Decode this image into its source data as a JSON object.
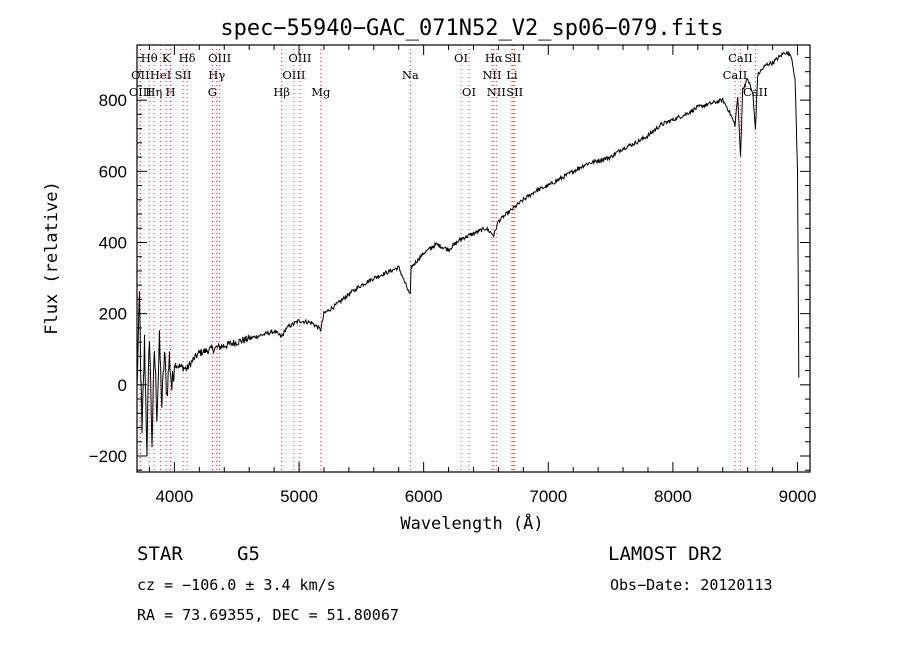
{
  "chart_data": {
    "type": "line",
    "title": "spec−55940−GAC_071N52_V2_sp06−079.fits",
    "xlabel": "Wavelength (Å)",
    "ylabel": "Flux (relative)",
    "xlim": [
      3700,
      9100
    ],
    "ylim": [
      -245,
      955
    ],
    "xticks": [
      4000,
      5000,
      6000,
      7000,
      8000,
      9000
    ],
    "yticks": [
      -200,
      0,
      200,
      400,
      600,
      800
    ],
    "series": [
      {
        "name": "flux",
        "x": [
          3700,
          3720,
          3740,
          3760,
          3780,
          3800,
          3820,
          3840,
          3860,
          3880,
          3900,
          3920,
          3940,
          3960,
          3980,
          4000,
          4050,
          4100,
          4150,
          4200,
          4300,
          4400,
          4500,
          4600,
          4700,
          4800,
          4861,
          4900,
          5000,
          5100,
          5175,
          5200,
          5300,
          5400,
          5500,
          5600,
          5700,
          5800,
          5893,
          5900,
          6000,
          6100,
          6200,
          6300,
          6400,
          6500,
          6563,
          6600,
          6700,
          6800,
          6900,
          7000,
          7100,
          7200,
          7300,
          7400,
          7500,
          7600,
          7700,
          7800,
          7900,
          8000,
          8100,
          8200,
          8300,
          8400,
          8450,
          8498,
          8520,
          8542,
          8560,
          8600,
          8640,
          8662,
          8680,
          8700,
          8750,
          8800,
          8850,
          8900,
          8950,
          8980,
          9000,
          9010
        ],
        "y": [
          -10,
          250,
          -150,
          120,
          -180,
          150,
          -160,
          100,
          -80,
          120,
          -60,
          90,
          -30,
          80,
          -10,
          60,
          50,
          45,
          70,
          90,
          100,
          110,
          120,
          130,
          140,
          150,
          135,
          160,
          180,
          175,
          155,
          200,
          225,
          255,
          280,
          300,
          315,
          330,
          250,
          330,
          370,
          395,
          380,
          410,
          425,
          440,
          420,
          460,
          490,
          520,
          545,
          560,
          580,
          600,
          620,
          630,
          640,
          665,
          680,
          700,
          730,
          745,
          760,
          780,
          790,
          800,
          770,
          730,
          810,
          640,
          830,
          860,
          820,
          720,
          870,
          880,
          900,
          905,
          920,
          935,
          925,
          860,
          600,
          20
        ]
      }
    ],
    "lines": [
      {
        "name": "Hθ",
        "wl": 3798,
        "row": 0
      },
      {
        "name": "OII",
        "wl": 3727,
        "row": 1
      },
      {
        "name": "OIII",
        "wl": 3727,
        "row": 2
      },
      {
        "name": "K",
        "wl": 3934,
        "row": 0
      },
      {
        "name": "Hδ",
        "wl": 4102,
        "row": 0
      },
      {
        "name": "HeI",
        "wl": 3889,
        "row": 1
      },
      {
        "name": "SII",
        "wl": 4070,
        "row": 1
      },
      {
        "name": "Hη",
        "wl": 3835,
        "row": 2
      },
      {
        "name": "H",
        "wl": 3969,
        "row": 2
      },
      {
        "name": "OIII",
        "wl": 4363,
        "row": 0
      },
      {
        "name": "Hγ",
        "wl": 4340,
        "row": 1
      },
      {
        "name": "G",
        "wl": 4305,
        "row": 2
      },
      {
        "name": "Hβ",
        "wl": 4861,
        "row": 2
      },
      {
        "name": "OIII",
        "wl": 5007,
        "row": 0
      },
      {
        "name": "OIII",
        "wl": 4959,
        "row": 1
      },
      {
        "name": "Mg",
        "wl": 5175,
        "row": 2
      },
      {
        "name": "Na",
        "wl": 5893,
        "row": 1
      },
      {
        "name": "OI",
        "wl": 6300,
        "row": 0
      },
      {
        "name": "OI",
        "wl": 6364,
        "row": 2
      },
      {
        "name": "Hα",
        "wl": 6563,
        "row": 0
      },
      {
        "name": "SII",
        "wl": 6716,
        "row": 0
      },
      {
        "name": "NII",
        "wl": 6548,
        "row": 1
      },
      {
        "name": "Li",
        "wl": 6708,
        "row": 1
      },
      {
        "name": "NII",
        "wl": 6583,
        "row": 2
      },
      {
        "name": "SII",
        "wl": 6731,
        "row": 2
      },
      {
        "name": "CaII",
        "wl": 8542,
        "row": 0
      },
      {
        "name": "CaII",
        "wl": 8498,
        "row": 1
      },
      {
        "name": "CaII",
        "wl": 8662,
        "row": 2
      }
    ]
  },
  "info": {
    "object_class": "STAR",
    "subclass": "G5",
    "survey": "LAMOST DR2",
    "cz": "cz = −106.0 ± 3.4 km/s",
    "obs_date": "Obs−Date: 20120113",
    "coords": "RA =  73.69355, DEC =  51.80067"
  },
  "colors": {
    "line_marker": "#c0392b",
    "spectrum": "#000000"
  }
}
